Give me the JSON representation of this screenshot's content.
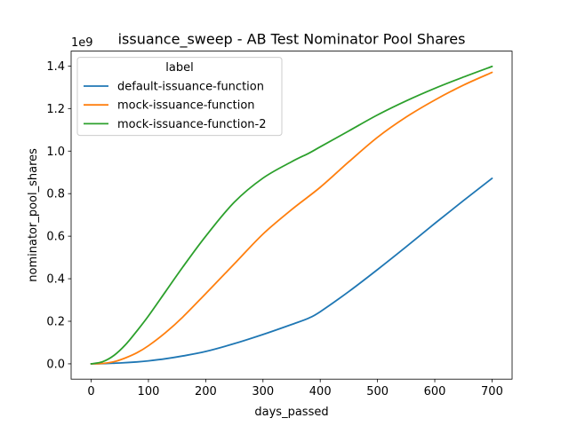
{
  "chart_data": {
    "type": "line",
    "title": "issuance_sweep - AB Test Nominator Pool Shares",
    "xlabel": "days_passed",
    "ylabel": "nominator_pool_shares",
    "y_offset_label": "1e9",
    "xlim": [
      -35,
      735
    ],
    "ylim": [
      -0.072,
      1.47
    ],
    "xticks": [
      0,
      100,
      200,
      300,
      400,
      500,
      600,
      700
    ],
    "yticks": [
      0.0,
      0.2,
      0.4,
      0.6,
      0.8,
      1.0,
      1.2,
      1.4
    ],
    "ytick_labels": [
      "0.0",
      "0.2",
      "0.4",
      "0.6",
      "0.8",
      "1.0",
      "1.2",
      "1.4"
    ],
    "grid": false,
    "legend": {
      "title": "label",
      "placement": "top-left"
    },
    "series": [
      {
        "name": "default-issuance-function",
        "color": "#1f77b4",
        "x": [
          0,
          20,
          50,
          80,
          100,
          130,
          160,
          200,
          250,
          300,
          350,
          380,
          400,
          450,
          500,
          550,
          600,
          650,
          700
        ],
        "y": [
          0.0,
          0.001,
          0.004,
          0.009,
          0.014,
          0.024,
          0.037,
          0.058,
          0.095,
          0.138,
          0.185,
          0.215,
          0.245,
          0.34,
          0.443,
          0.55,
          0.66,
          0.767,
          0.872
        ]
      },
      {
        "name": "mock-issuance-function",
        "color": "#ff7f0e",
        "x": [
          0,
          20,
          40,
          60,
          80,
          100,
          130,
          160,
          200,
          250,
          300,
          350,
          400,
          450,
          500,
          550,
          600,
          650,
          700
        ],
        "y": [
          0.0,
          0.002,
          0.01,
          0.028,
          0.052,
          0.085,
          0.147,
          0.22,
          0.33,
          0.47,
          0.61,
          0.725,
          0.83,
          0.95,
          1.065,
          1.16,
          1.24,
          1.31,
          1.37
        ]
      },
      {
        "name": "mock-issuance-function-2",
        "color": "#2ca02c",
        "x": [
          0,
          20,
          40,
          60,
          80,
          100,
          130,
          160,
          200,
          250,
          300,
          350,
          380,
          400,
          450,
          500,
          550,
          600,
          650,
          700
        ],
        "y": [
          0.0,
          0.01,
          0.04,
          0.09,
          0.155,
          0.225,
          0.34,
          0.455,
          0.6,
          0.76,
          0.873,
          0.95,
          0.99,
          1.02,
          1.095,
          1.17,
          1.236,
          1.295,
          1.348,
          1.398
        ]
      }
    ]
  }
}
